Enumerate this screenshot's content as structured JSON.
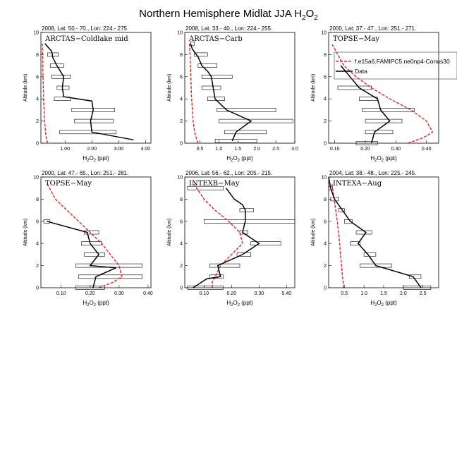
{
  "figure": {
    "title_main": "Northern Hemisphere Midlat JJA H",
    "title_sub": "2",
    "title_end": "O",
    "title_sub2": "2"
  },
  "legend": {
    "model_label": "f.e15a6.FAMIPC5.ne0np4-Conus30",
    "obs_label": "Data",
    "model_color": "#e8201f",
    "obs_color": "#000000"
  },
  "chart_data": [
    {
      "type": "line",
      "panel": "ARCTAS-Coldlake-mid",
      "title": "ARCTAS−Coldlake mid",
      "header": "2008, Lat:  50.- 70., Lon: 224.- 275",
      "xlabel": "H2O2 (ppt)",
      "ylabel": "Altitude (km)",
      "xlim": [
        0.1,
        4.2
      ],
      "ylim": [
        0,
        10
      ],
      "xticks": [
        1.0,
        2.0,
        3.0,
        4.0
      ],
      "xticklabels": [
        "1.00",
        "2.00",
        "3.00",
        "4.00"
      ],
      "yticks": [
        0,
        2,
        4,
        6,
        8,
        10
      ],
      "yticklabels": [
        "0",
        "2",
        "4",
        "6",
        "8",
        "10"
      ],
      "model": {
        "x": [
          0.35,
          0.3,
          0.27,
          0.24,
          0.22,
          0.2,
          0.19,
          0.18,
          0.17,
          0.16,
          0.15
        ],
        "y": [
          0,
          0.5,
          1,
          2,
          3,
          4,
          5,
          6,
          7,
          8,
          9
        ]
      },
      "obs": {
        "x": [
          3.55,
          2.0,
          1.95,
          2.05,
          2.0,
          0.95,
          0.9,
          0.95,
          0.7,
          0.55,
          0.5,
          0.25
        ],
        "y": [
          0.3,
          1.0,
          2.0,
          3.0,
          3.8,
          4.2,
          5.0,
          6.0,
          7.0,
          7.7,
          8.3,
          9.0
        ]
      },
      "boxes": [
        {
          "alt": 1.0,
          "lo": 0.8,
          "hi": 2.9
        },
        {
          "alt": 2.0,
          "lo": 1.35,
          "hi": 2.8
        },
        {
          "alt": 3.0,
          "lo": 1.25,
          "hi": 2.85
        },
        {
          "alt": 4.0,
          "lo": 0.6,
          "hi": 1.2
        },
        {
          "alt": 5.0,
          "lo": 0.7,
          "hi": 1.15
        },
        {
          "alt": 6.0,
          "lo": 0.5,
          "hi": 1.2
        },
        {
          "alt": 7.0,
          "lo": 0.45,
          "hi": 0.95
        },
        {
          "alt": 8.0,
          "lo": 0.35,
          "hi": 0.75
        }
      ]
    },
    {
      "type": "line",
      "panel": "ARCTAS-Carb",
      "title": "ARCTAS−Carb",
      "header": "2008, Lat:  33.- 40., Lon: 224.- 255.",
      "xlabel": "H2O2 (ppt)",
      "ylabel": "Altitude (km)",
      "xlim": [
        0.1,
        3.0
      ],
      "ylim": [
        0,
        10
      ],
      "xticks": [
        0.5,
        1.0,
        1.5,
        2.0,
        2.5,
        3.0
      ],
      "xticklabels": [
        "0.5",
        "1.0",
        "1.5",
        "2.0",
        "2.5",
        "3.0"
      ],
      "yticks": [
        0,
        2,
        4,
        6,
        8,
        10
      ],
      "yticklabels": [
        "0",
        "2",
        "4",
        "6",
        "8",
        "10"
      ],
      "model": {
        "x": [
          0.45,
          0.4,
          0.36,
          0.32,
          0.3,
          0.28,
          0.27,
          0.26,
          0.25,
          0.24,
          0.22
        ],
        "y": [
          0,
          0.5,
          1,
          2,
          3,
          4,
          5,
          6,
          7,
          8,
          9
        ]
      },
      "obs": {
        "x": [
          1.35,
          1.45,
          1.85,
          1.2,
          0.9,
          0.85,
          0.8,
          0.7,
          0.55,
          0.45,
          0.3,
          0.25
        ],
        "y": [
          0.2,
          1.0,
          2.0,
          3.0,
          4.0,
          5.0,
          6.0,
          6.5,
          7.0,
          7.8,
          8.5,
          9.0
        ]
      },
      "boxes": [
        {
          "alt": 0.2,
          "lo": 0.9,
          "hi": 2.0
        },
        {
          "alt": 1.0,
          "lo": 1.15,
          "hi": 2.25
        },
        {
          "alt": 2.0,
          "lo": 1.0,
          "hi": 2.95
        },
        {
          "alt": 3.0,
          "lo": 0.95,
          "hi": 2.5
        },
        {
          "alt": 4.0,
          "lo": 0.7,
          "hi": 1.15
        },
        {
          "alt": 5.0,
          "lo": 0.55,
          "hi": 1.05
        },
        {
          "alt": 6.0,
          "lo": 0.55,
          "hi": 1.35
        },
        {
          "alt": 7.0,
          "lo": 0.45,
          "hi": 0.95
        },
        {
          "alt": 8.0,
          "lo": 0.35,
          "hi": 0.7
        },
        {
          "alt": 9.0,
          "lo": 0.25,
          "hi": 0.35
        }
      ]
    },
    {
      "type": "line",
      "panel": "TOPSE-May-1",
      "title": "TOPSE−May",
      "header": "2000, Lat: 37.- 47., Lon: 251.- 271.",
      "xlabel": "H2O2 (ppt)",
      "ylabel": "Altitude (km)",
      "xlim": [
        0.08,
        0.44
      ],
      "ylim": [
        0,
        10
      ],
      "xticks": [
        0.1,
        0.2,
        0.3,
        0.4
      ],
      "xticklabels": [
        "0.10",
        "0.20",
        "0.30",
        "0.40"
      ],
      "yticks": [
        0,
        2,
        4,
        6,
        8,
        10
      ],
      "yticklabels": [
        "0",
        "2",
        "4",
        "6",
        "8",
        "10"
      ],
      "model": {
        "x": [
          0.34,
          0.39,
          0.42,
          0.4,
          0.35,
          0.28,
          0.22,
          0.17,
          0.13,
          0.11,
          0.09
        ],
        "y": [
          0,
          0.5,
          1,
          2,
          3,
          4,
          5,
          6,
          7,
          8,
          9
        ]
      },
      "obs": {
        "x": [
          0.22,
          0.23,
          0.28,
          0.25,
          0.24,
          0.18,
          0.15,
          0.12
        ],
        "y": [
          0.0,
          1.0,
          2.0,
          3.0,
          4.0,
          5.0,
          6.0,
          7.0
        ]
      },
      "boxes": [
        {
          "alt": 0.0,
          "lo": 0.17,
          "hi": 0.24
        },
        {
          "alt": 1.0,
          "lo": 0.2,
          "hi": 0.29
        },
        {
          "alt": 2.0,
          "lo": 0.2,
          "hi": 0.32
        },
        {
          "alt": 3.0,
          "lo": 0.19,
          "hi": 0.36
        },
        {
          "alt": 4.0,
          "lo": 0.18,
          "hi": 0.24
        },
        {
          "alt": 5.0,
          "lo": 0.11,
          "hi": 0.22
        }
      ]
    },
    {
      "type": "line",
      "panel": "TOPSE-May-2",
      "title": "TOPSE−May",
      "header": "2000, Lat: 47.- 65., Lon: 251.- 281.",
      "xlabel": "H2O2 (ppt)",
      "ylabel": "Altitude (km)",
      "xlim": [
        0.03,
        0.41
      ],
      "ylim": [
        0,
        10
      ],
      "xticks": [
        0.1,
        0.2,
        0.3,
        0.4
      ],
      "xticklabels": [
        "0.10",
        "0.20",
        "0.30",
        "0.40"
      ],
      "yticks": [
        0,
        2,
        4,
        6,
        8,
        10
      ],
      "yticklabels": [
        "0",
        "2",
        "4",
        "6",
        "8",
        "10"
      ],
      "model": {
        "x": [
          0.23,
          0.28,
          0.31,
          0.3,
          0.27,
          0.24,
          0.2,
          0.16,
          0.12,
          0.08,
          0.05
        ],
        "y": [
          0,
          0.5,
          1,
          2,
          3,
          4,
          5,
          6,
          7,
          8,
          9.5
        ]
      },
      "obs": {
        "x": [
          0.21,
          0.22,
          0.29,
          0.2,
          0.23,
          0.2,
          0.19,
          0.05
        ],
        "y": [
          0.0,
          1.0,
          1.8,
          2.0,
          3.0,
          4.0,
          5.0,
          6.0
        ]
      },
      "boxes": [
        {
          "alt": 0.0,
          "lo": 0.15,
          "hi": 0.25
        },
        {
          "alt": 1.0,
          "lo": 0.16,
          "hi": 0.38
        },
        {
          "alt": 2.0,
          "lo": 0.15,
          "hi": 0.38
        },
        {
          "alt": 3.0,
          "lo": 0.18,
          "hi": 0.25
        },
        {
          "alt": 4.0,
          "lo": 0.17,
          "hi": 0.24
        },
        {
          "alt": 5.0,
          "lo": 0.18,
          "hi": 0.23
        },
        {
          "alt": 6.0,
          "lo": 0.04,
          "hi": 0.06
        }
      ]
    },
    {
      "type": "line",
      "panel": "INTEXB-May",
      "title": "INTEXB−May",
      "header": "2006, Lat: 56.- 62., Lon: 205.- 215.",
      "xlabel": "H2O2 (ppt)",
      "ylabel": "Altitude (km)",
      "xlim": [
        0.03,
        0.43
      ],
      "ylim": [
        0,
        10
      ],
      "xticks": [
        0.1,
        0.2,
        0.3,
        0.4
      ],
      "xticklabels": [
        "0.10",
        "0.20",
        "0.30",
        "0.40"
      ],
      "yticks": [
        0,
        2,
        4,
        6,
        8,
        10
      ],
      "yticklabels": [
        "0",
        "2",
        "4",
        "6",
        "8",
        "10"
      ],
      "model": {
        "x": [
          0.13,
          0.13,
          0.14,
          0.16,
          0.2,
          0.24,
          0.23,
          0.19,
          0.14,
          0.1,
          0.06
        ],
        "y": [
          0,
          0.5,
          1,
          2,
          3,
          4,
          5,
          6,
          7,
          8,
          9.5
        ]
      },
      "obs": {
        "x": [
          0.06,
          0.11,
          0.16,
          0.15,
          0.24,
          0.3,
          0.24,
          0.25,
          0.25,
          0.24,
          0.21,
          0.18
        ],
        "y": [
          0.0,
          0.8,
          1.0,
          2.0,
          3.0,
          4.0,
          5.0,
          6.0,
          7.0,
          7.5,
          8.0,
          9.0
        ]
      },
      "boxes": [
        {
          "alt": 0.0,
          "lo": 0.04,
          "hi": 0.17
        },
        {
          "alt": 1.0,
          "lo": 0.12,
          "hi": 0.17
        },
        {
          "alt": 2.0,
          "lo": 0.12,
          "hi": 0.23
        },
        {
          "alt": 3.0,
          "lo": 0.22,
          "hi": 0.27
        },
        {
          "alt": 4.0,
          "lo": 0.27,
          "hi": 0.38
        },
        {
          "alt": 5.0,
          "lo": 0.23,
          "hi": 0.26
        },
        {
          "alt": 6.0,
          "lo": 0.1,
          "hi": 0.43
        },
        {
          "alt": 7.0,
          "lo": 0.23,
          "hi": 0.28
        },
        {
          "alt": 9.0,
          "lo": 0.04,
          "hi": 0.17
        }
      ]
    },
    {
      "type": "line",
      "panel": "INTEXA-Aug",
      "title": "INTEXA−Aug",
      "header": "2004, Lat: 38.- 48., Lon: 225.- 245.",
      "xlabel": "H2O2 (ppt)",
      "ylabel": "Altitude (km)",
      "xlim": [
        0.1,
        2.9
      ],
      "ylim": [
        0,
        10
      ],
      "xticks": [
        0.5,
        1.0,
        1.5,
        2.0,
        2.5
      ],
      "xticklabels": [
        "0.5",
        "1.0",
        "1.5",
        "2.0",
        "2.5"
      ],
      "yticks": [
        0,
        2,
        4,
        6,
        8,
        10
      ],
      "yticklabels": [
        "0",
        "2",
        "4",
        "6",
        "8",
        "10"
      ],
      "model": {
        "x": [
          0.48,
          0.47,
          0.45,
          0.43,
          0.4,
          0.38,
          0.35,
          0.32,
          0.28,
          0.24,
          0.18
        ],
        "y": [
          0,
          0.5,
          1,
          2,
          3,
          4,
          5,
          6,
          7,
          8,
          9.5
        ]
      },
      "obs": {
        "x": [
          2.45,
          2.25,
          1.3,
          1.1,
          0.85,
          1.05,
          0.65,
          0.45,
          0.25,
          0.15,
          0.1
        ],
        "y": [
          0.0,
          1.0,
          2.0,
          3.0,
          4.0,
          5.0,
          6.0,
          7.0,
          8.0,
          9.0,
          10.0
        ]
      },
      "boxes": [
        {
          "alt": 0.0,
          "lo": 2.0,
          "hi": 2.7
        },
        {
          "alt": 1.0,
          "lo": 2.15,
          "hi": 2.45
        },
        {
          "alt": 2.0,
          "lo": 0.9,
          "hi": 1.7
        },
        {
          "alt": 3.0,
          "lo": 1.0,
          "hi": 1.3
        },
        {
          "alt": 4.0,
          "lo": 0.65,
          "hi": 0.9
        },
        {
          "alt": 5.0,
          "lo": 0.8,
          "hi": 1.2
        },
        {
          "alt": 6.0,
          "lo": 0.5,
          "hi": 0.7
        },
        {
          "alt": 7.0,
          "lo": 0.35,
          "hi": 0.5
        },
        {
          "alt": 8.0,
          "lo": 0.15,
          "hi": 0.35
        },
        {
          "alt": 9.0,
          "lo": 0.1,
          "hi": 0.2
        }
      ]
    }
  ]
}
